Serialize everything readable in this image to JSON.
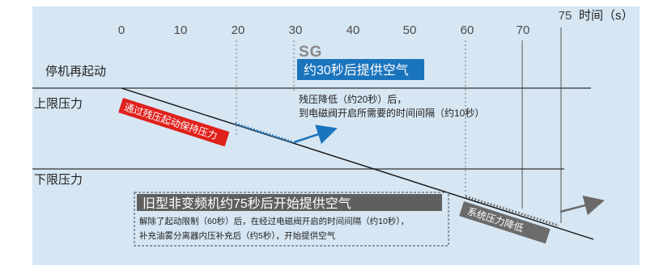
{
  "axis": {
    "ticks": [
      "0",
      "10",
      "20",
      "30",
      "40",
      "50",
      "60",
      "70",
      "75"
    ],
    "unit_label": "时间（s）"
  },
  "rows": {
    "restart": "停机再起动",
    "upper": "上限压力",
    "lower": "下限压力"
  },
  "sg": {
    "logo": "SG",
    "banner": "约30秒后提供空气",
    "note_line1": "残压降低（约20秒）后，",
    "note_line2": "到电磁阀开启所需要的时间间隔（约10秒）"
  },
  "red_tag": "通过残压起动保持压力",
  "old": {
    "banner": "旧型非变频机约75秒后开始提供空气",
    "note_line1": "解除了起动限制（60秒）后，在经过电磁阀开启的时间间隔（约10秒），",
    "note_line2": "补充油雾分离器内压补充后（约5秒），开始提供空气"
  },
  "grey_tag": "系统压力降低",
  "colors": {
    "background": "#d6e6f3",
    "sg_blue": "#1a74bd",
    "red_tag": "#e0201b",
    "grey_tag": "#6b6b6b",
    "old_banner": "#5f5f5f"
  }
}
